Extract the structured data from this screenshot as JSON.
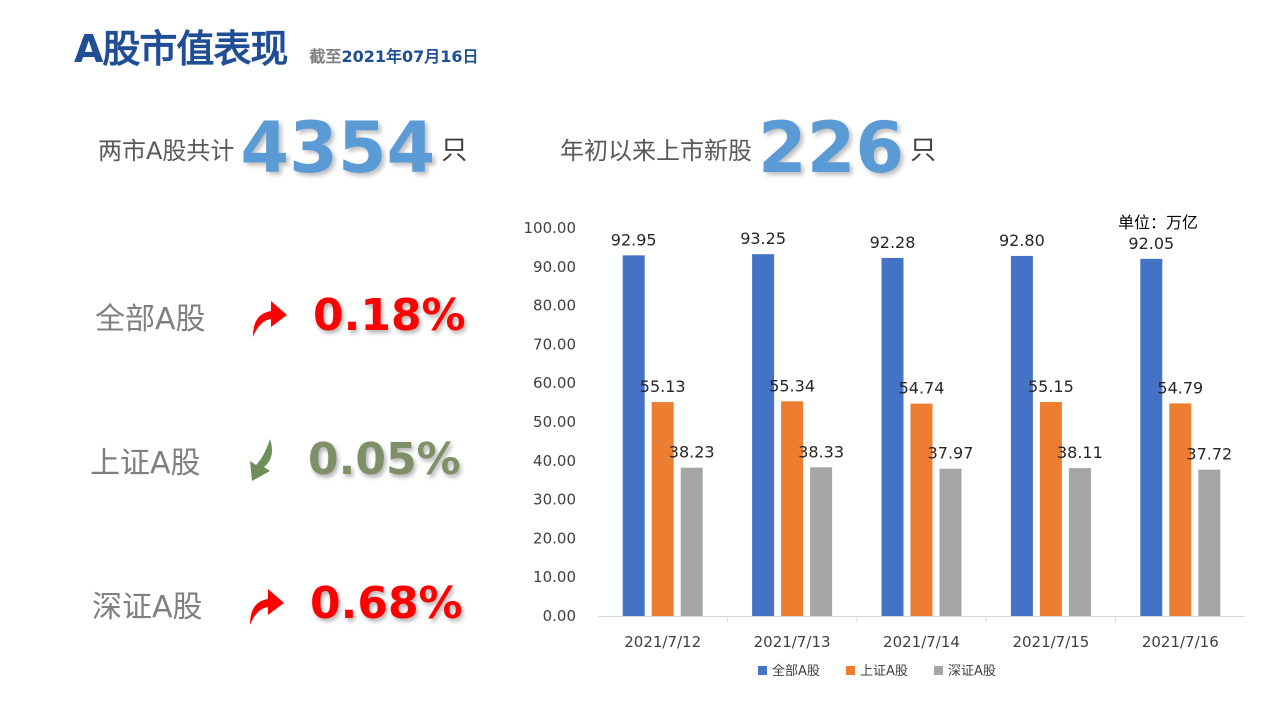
{
  "header": {
    "title": "A股市值表现",
    "subtitle_prefix": "截至",
    "subtitle_date": "2021年07月16日"
  },
  "stats": [
    {
      "label": "两市A股共计",
      "value": "4354",
      "unit": "只"
    },
    {
      "label": "年初以来上市新股",
      "value": "226",
      "unit": "只"
    }
  ],
  "indices": [
    {
      "name": "全部A股",
      "direction": "up",
      "change": "0.18%",
      "color": "#ff0000"
    },
    {
      "name": "上证A股",
      "direction": "down",
      "change": "0.05%",
      "color": "#7f9068"
    },
    {
      "name": "深证A股",
      "direction": "up",
      "change": "0.68%",
      "color": "#ff0000"
    }
  ],
  "chart_data": {
    "type": "bar",
    "unit_label": "单位：万亿",
    "categories": [
      "2021/7/12",
      "2021/7/13",
      "2021/7/14",
      "2021/7/15",
      "2021/7/16"
    ],
    "series": [
      {
        "name": "全部A股",
        "color": "#4472c4",
        "values": [
          92.95,
          93.25,
          92.28,
          92.8,
          92.05
        ]
      },
      {
        "name": "上证A股",
        "color": "#ed7d31",
        "values": [
          55.13,
          55.34,
          54.74,
          55.15,
          54.79
        ]
      },
      {
        "name": "深证A股",
        "color": "#a5a5a5",
        "values": [
          38.23,
          38.33,
          37.97,
          38.11,
          37.72
        ]
      }
    ],
    "ylim": [
      0,
      100
    ],
    "yticks": [
      "0.00",
      "10.00",
      "20.00",
      "30.00",
      "40.00",
      "50.00",
      "60.00",
      "70.00",
      "80.00",
      "90.00",
      "100.00"
    ],
    "grid": false,
    "legend": "bottom"
  }
}
